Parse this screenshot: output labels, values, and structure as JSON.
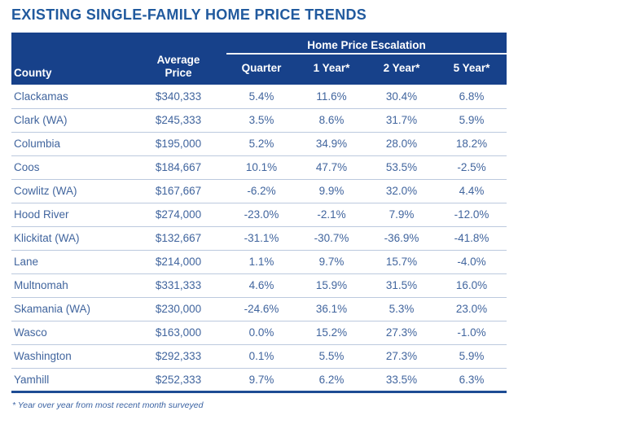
{
  "title": "EXISTING SINGLE-FAMILY HOME PRICE TRENDS",
  "footnote": "* Year over year from most recent month surveyed",
  "colors": {
    "header_bg": "#17418a",
    "header_text": "#ffffff",
    "title_text": "#215a9e",
    "body_text": "#41659e",
    "row_divider": "#bcc9de",
    "bottom_border": "#1d4c94"
  },
  "table": {
    "group_header": "Home Price Escalation",
    "columns": [
      "County",
      "Average Price",
      "Quarter",
      "1 Year*",
      "2 Year*",
      "5 Year*"
    ],
    "rows": [
      {
        "county": "Clackamas",
        "avg_price": "$340,333",
        "quarter": "5.4%",
        "yr1": "11.6%",
        "yr2": "30.4%",
        "yr5": "6.8%"
      },
      {
        "county": "Clark (WA)",
        "avg_price": "$245,333",
        "quarter": "3.5%",
        "yr1": "8.6%",
        "yr2": "31.7%",
        "yr5": "5.9%"
      },
      {
        "county": "Columbia",
        "avg_price": "$195,000",
        "quarter": "5.2%",
        "yr1": "34.9%",
        "yr2": "28.0%",
        "yr5": "18.2%"
      },
      {
        "county": "Coos",
        "avg_price": "$184,667",
        "quarter": "10.1%",
        "yr1": "47.7%",
        "yr2": "53.5%",
        "yr5": "-2.5%"
      },
      {
        "county": "Cowlitz (WA)",
        "avg_price": "$167,667",
        "quarter": "-6.2%",
        "yr1": "9.9%",
        "yr2": "32.0%",
        "yr5": "4.4%"
      },
      {
        "county": "Hood River",
        "avg_price": "$274,000",
        "quarter": "-23.0%",
        "yr1": "-2.1%",
        "yr2": "7.9%",
        "yr5": "-12.0%"
      },
      {
        "county": "Klickitat (WA)",
        "avg_price": "$132,667",
        "quarter": "-31.1%",
        "yr1": "-30.7%",
        "yr2": "-36.9%",
        "yr5": "-41.8%"
      },
      {
        "county": "Lane",
        "avg_price": "$214,000",
        "quarter": "1.1%",
        "yr1": "9.7%",
        "yr2": "15.7%",
        "yr5": "-4.0%"
      },
      {
        "county": "Multnomah",
        "avg_price": "$331,333",
        "quarter": "4.6%",
        "yr1": "15.9%",
        "yr2": "31.5%",
        "yr5": "16.0%"
      },
      {
        "county": "Skamania (WA)",
        "avg_price": "$230,000",
        "quarter": "-24.6%",
        "yr1": "36.1%",
        "yr2": "5.3%",
        "yr5": "23.0%"
      },
      {
        "county": "Wasco",
        "avg_price": "$163,000",
        "quarter": "0.0%",
        "yr1": "15.2%",
        "yr2": "27.3%",
        "yr5": "-1.0%"
      },
      {
        "county": "Washington",
        "avg_price": "$292,333",
        "quarter": "0.1%",
        "yr1": "5.5%",
        "yr2": "27.3%",
        "yr5": "5.9%"
      },
      {
        "county": "Yamhill",
        "avg_price": "$252,333",
        "quarter": "9.7%",
        "yr1": "6.2%",
        "yr2": "33.5%",
        "yr5": "6.3%"
      }
    ]
  }
}
